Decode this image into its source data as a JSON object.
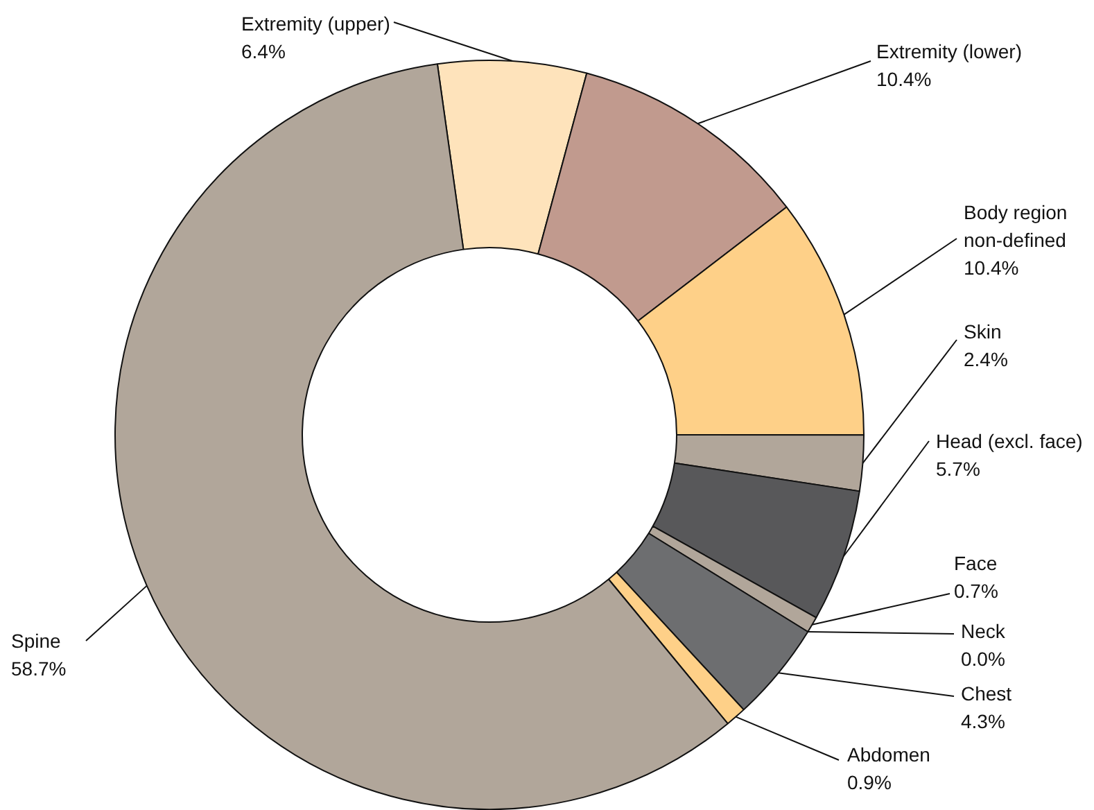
{
  "chart_data": {
    "type": "donut",
    "categories": [
      "Extremity (upper)",
      "Extremity (lower)",
      "Body region non-defined",
      "Skin",
      "Head (excl. face)",
      "Face",
      "Neck",
      "Chest",
      "Abdomen",
      "Spine"
    ],
    "values": [
      6.4,
      10.4,
      10.4,
      2.4,
      5.7,
      0.7,
      0.0,
      4.3,
      0.9,
      58.7
    ],
    "value_labels": [
      "6.4%",
      "10.4%",
      "10.4%",
      "2.4%",
      "5.7%",
      "0.7%",
      "0.0%",
      "4.3%",
      "0.9%",
      "58.7%"
    ],
    "colors": [
      "#fee3bb",
      "#c19a8e",
      "#fed088",
      "#b1a69a",
      "#58585a",
      "#b1a69a",
      "#b1a69a",
      "#6d6e70",
      "#fed088",
      "#b1a69a"
    ],
    "legend": false
  }
}
